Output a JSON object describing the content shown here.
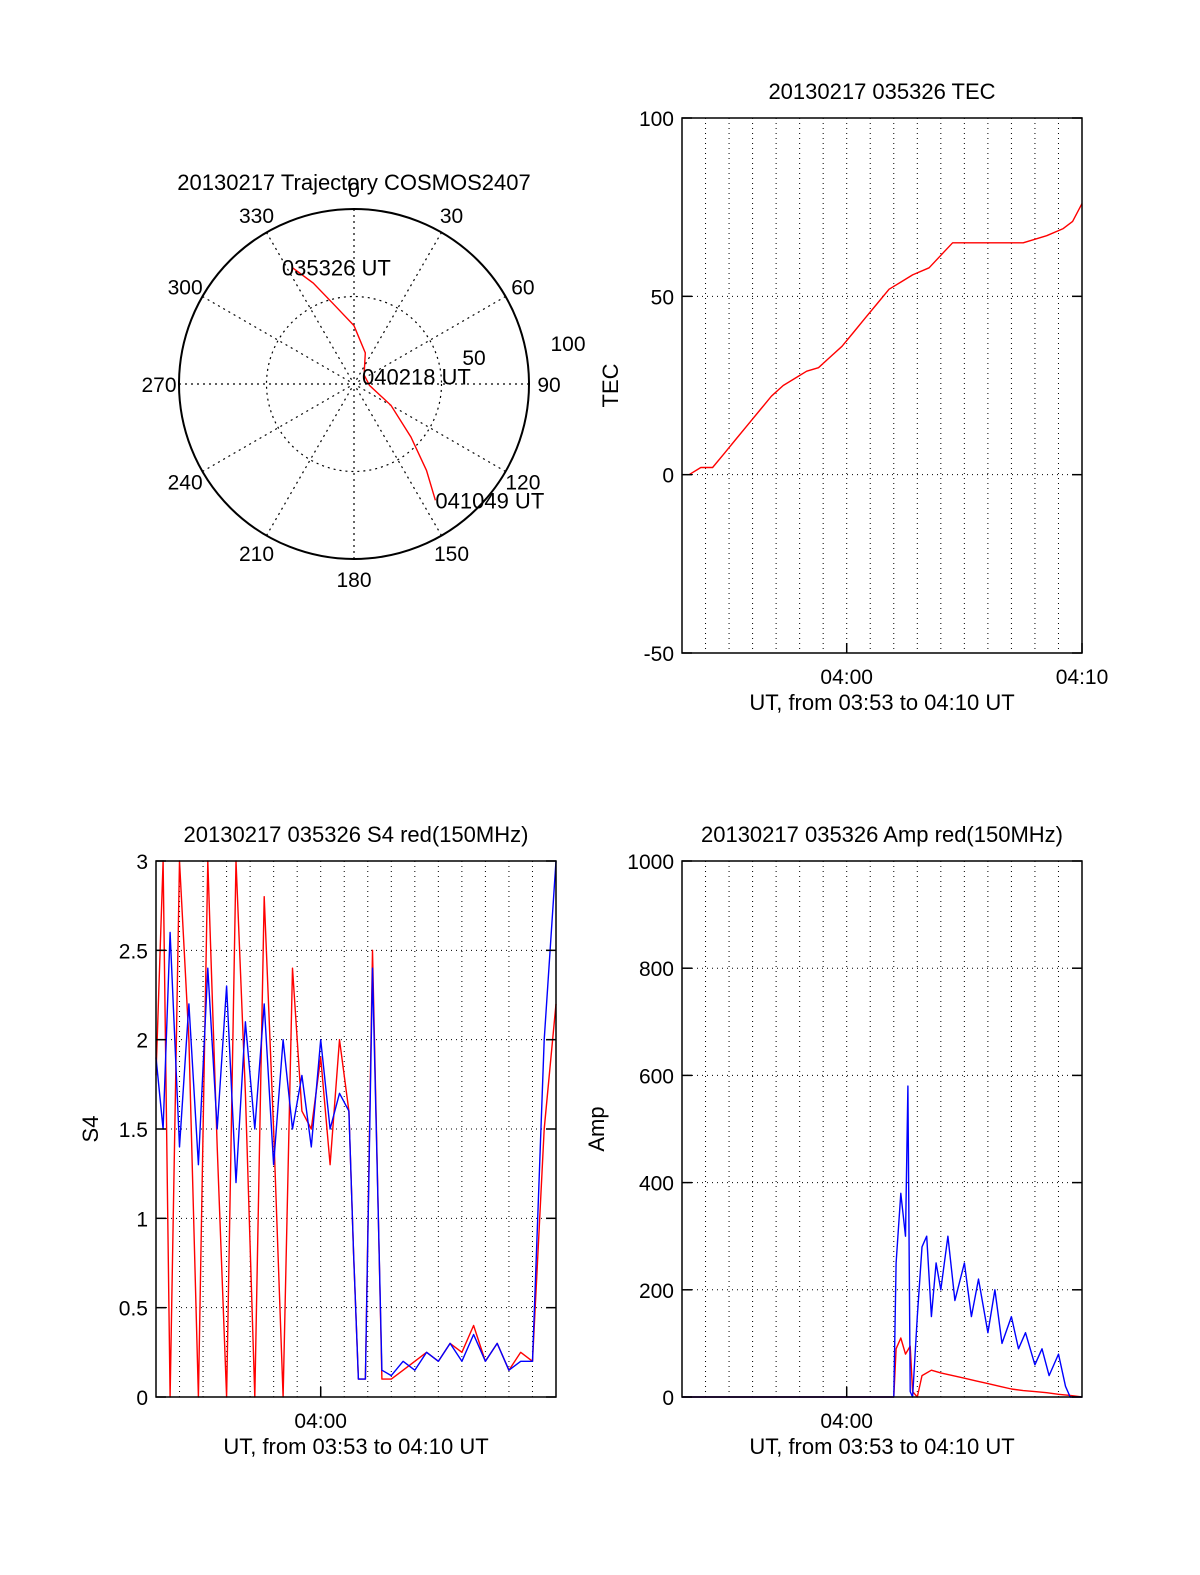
{
  "colors": {
    "red": "#ff0000",
    "blue": "#0000ff",
    "axis": "#000000",
    "grid": "#000000"
  },
  "chart_data": [
    {
      "type": "scatter",
      "subtype": "polar",
      "title": "20130217 Trajectory COSMOS2407",
      "angle_labels": [
        "0",
        "30",
        "60",
        "90",
        "120",
        "150",
        "180",
        "210",
        "240",
        "270",
        "300",
        "330"
      ],
      "radial_tick_labels": [
        "100",
        "50"
      ],
      "grid": true,
      "series": [
        {
          "color": "#ff0000",
          "points": [
            {
              "az": 332,
              "el": 22
            },
            {
              "az": 338,
              "el": 34
            },
            {
              "az": 346,
              "el": 48
            },
            {
              "az": 0,
              "el": 60
            },
            {
              "az": 20,
              "el": 73
            },
            {
              "az": 48,
              "el": 83
            },
            {
              "az": 95,
              "el": 82
            },
            {
              "az": 120,
              "el": 68
            },
            {
              "az": 133,
              "el": 50
            },
            {
              "az": 140,
              "el": 32
            },
            {
              "az": 145,
              "el": 17
            }
          ]
        }
      ],
      "annotations": [
        {
          "text": "035326 UT",
          "az": 332,
          "el": 22
        },
        {
          "text": "040218 UT",
          "az": 68,
          "el": 80
        },
        {
          "text": "041049 UT",
          "az": 145,
          "el": 17
        }
      ]
    },
    {
      "type": "line",
      "title": "20130217 035326 TEC",
      "xlabel": "UT, from 03:53 to 04:10 UT",
      "ylabel": "TEC",
      "xlim": [
        -7,
        10
      ],
      "ylim": [
        -50,
        100
      ],
      "xticks": [
        {
          "v": 0,
          "label": "04:00"
        },
        {
          "v": 10,
          "label": "04:10"
        }
      ],
      "yticks": [
        {
          "v": -50,
          "label": "-50"
        },
        {
          "v": 0,
          "label": "0"
        },
        {
          "v": 50,
          "label": "50"
        },
        {
          "v": 100,
          "label": "100"
        }
      ],
      "grid": true,
      "series": [
        {
          "color": "#ff0000",
          "x": [
            -6.7,
            -6.2,
            -5.7,
            -5.2,
            -4.7,
            -4.2,
            -3.7,
            -3.2,
            -2.7,
            -2.2,
            -1.7,
            -1.2,
            -0.7,
            -0.2,
            0.3,
            0.8,
            1.3,
            1.8,
            2.3,
            2.8,
            3.5,
            4.5,
            5.5,
            6.5,
            7.5,
            8.5,
            9.2,
            9.6,
            10.0
          ],
          "y": [
            0,
            2,
            2,
            6,
            10,
            14,
            18,
            22,
            25,
            27,
            29,
            30,
            33,
            36,
            40,
            44,
            48,
            52,
            54,
            56,
            58,
            65,
            65,
            65,
            65,
            67,
            69,
            71,
            76
          ]
        }
      ]
    },
    {
      "type": "line",
      "title": "20130217 035326 S4 red(150MHz)",
      "xlabel": "UT, from 03:53 to 04:10 UT",
      "ylabel": "S4",
      "xlim": [
        -7,
        10
      ],
      "ylim": [
        0,
        3
      ],
      "xticks": [
        {
          "v": 0,
          "label": "04:00"
        }
      ],
      "yticks": [
        {
          "v": 0,
          "label": "0"
        },
        {
          "v": 0.5,
          "label": "0.5"
        },
        {
          "v": 1,
          "label": "1"
        },
        {
          "v": 1.5,
          "label": "1.5"
        },
        {
          "v": 2,
          "label": "2"
        },
        {
          "v": 2.5,
          "label": "2.5"
        },
        {
          "v": 3,
          "label": "3"
        }
      ],
      "grid": true,
      "series": [
        {
          "color": "#ff0000",
          "x": [
            -7.0,
            -6.7,
            -6.4,
            -6.0,
            -5.6,
            -5.2,
            -4.8,
            -4.4,
            -4.0,
            -3.6,
            -3.2,
            -2.8,
            -2.4,
            -2.0,
            -1.6,
            -1.2,
            -0.8,
            -0.4,
            0.0,
            0.4,
            0.8,
            1.2,
            1.4,
            1.6,
            1.9,
            2.2,
            2.6,
            3.0,
            3.5,
            4.0,
            4.5,
            5.0,
            5.5,
            6.0,
            6.5,
            7.0,
            7.5,
            8.0,
            8.5,
            9.0,
            9.5,
            10.0
          ],
          "y": [
            1.8,
            3.0,
            0.0,
            3.0,
            2.0,
            0.0,
            3.0,
            1.4,
            0.0,
            3.0,
            1.7,
            0.0,
            2.8,
            1.5,
            0.0,
            2.4,
            1.6,
            1.5,
            1.9,
            1.3,
            2.0,
            1.6,
            0.8,
            0.1,
            0.1,
            2.5,
            0.1,
            0.1,
            0.15,
            0.2,
            0.25,
            0.2,
            0.3,
            0.25,
            0.4,
            0.2,
            0.3,
            0.15,
            0.25,
            0.2,
            1.5,
            2.2
          ]
        },
        {
          "color": "#0000ff",
          "x": [
            -7.0,
            -6.7,
            -6.4,
            -6.0,
            -5.6,
            -5.2,
            -4.8,
            -4.4,
            -4.0,
            -3.6,
            -3.2,
            -2.8,
            -2.4,
            -2.0,
            -1.6,
            -1.2,
            -0.8,
            -0.4,
            0.0,
            0.4,
            0.8,
            1.2,
            1.4,
            1.6,
            1.9,
            2.2,
            2.6,
            3.0,
            3.5,
            4.0,
            4.5,
            5.0,
            5.5,
            6.0,
            6.5,
            7.0,
            7.5,
            8.0,
            8.5,
            9.0,
            9.5,
            10.0
          ],
          "y": [
            1.9,
            1.5,
            2.6,
            1.4,
            2.2,
            1.3,
            2.4,
            1.5,
            2.3,
            1.2,
            2.1,
            1.5,
            2.2,
            1.3,
            2.0,
            1.5,
            1.8,
            1.4,
            2.0,
            1.5,
            1.7,
            1.6,
            0.8,
            0.1,
            0.1,
            2.4,
            0.15,
            0.12,
            0.2,
            0.15,
            0.25,
            0.2,
            0.3,
            0.2,
            0.35,
            0.2,
            0.3,
            0.15,
            0.2,
            0.2,
            2.0,
            3.0
          ]
        }
      ]
    },
    {
      "type": "line",
      "title": "20130217 035326 Amp red(150MHz)",
      "xlabel": "UT, from 03:53 to 04:10 UT",
      "ylabel": "Amp",
      "xlim": [
        -7,
        10
      ],
      "ylim": [
        0,
        1000
      ],
      "xticks": [
        {
          "v": 0,
          "label": "04:00"
        }
      ],
      "yticks": [
        {
          "v": 0,
          "label": "0"
        },
        {
          "v": 200,
          "label": "200"
        },
        {
          "v": 400,
          "label": "400"
        },
        {
          "v": 600,
          "label": "600"
        },
        {
          "v": 800,
          "label": "800"
        },
        {
          "v": 1000,
          "label": "1000"
        }
      ],
      "grid": true,
      "series": [
        {
          "color": "#ff0000",
          "x": [
            -7.0,
            2.0,
            2.1,
            2.3,
            2.5,
            2.7,
            2.8,
            3.0,
            3.2,
            3.6,
            4.0,
            4.5,
            5.0,
            5.5,
            6.0,
            6.5,
            7.0,
            7.5,
            8.0,
            8.5,
            9.0,
            9.5,
            10.0
          ],
          "y": [
            0,
            0,
            90,
            110,
            80,
            95,
            10,
            0,
            40,
            50,
            45,
            40,
            35,
            30,
            25,
            20,
            15,
            12,
            10,
            8,
            5,
            3,
            0
          ]
        },
        {
          "color": "#0000ff",
          "x": [
            -7.0,
            2.0,
            2.1,
            2.3,
            2.5,
            2.6,
            2.7,
            2.8,
            3.0,
            3.2,
            3.4,
            3.6,
            3.8,
            4.0,
            4.3,
            4.6,
            5.0,
            5.3,
            5.6,
            6.0,
            6.3,
            6.6,
            7.0,
            7.3,
            7.6,
            8.0,
            8.3,
            8.6,
            9.0,
            9.3,
            9.5,
            10.0
          ],
          "y": [
            0,
            0,
            250,
            380,
            300,
            580,
            10,
            0,
            150,
            280,
            300,
            150,
            250,
            200,
            300,
            180,
            250,
            150,
            220,
            120,
            200,
            100,
            150,
            90,
            120,
            60,
            90,
            40,
            80,
            20,
            0,
            0
          ]
        }
      ]
    }
  ]
}
